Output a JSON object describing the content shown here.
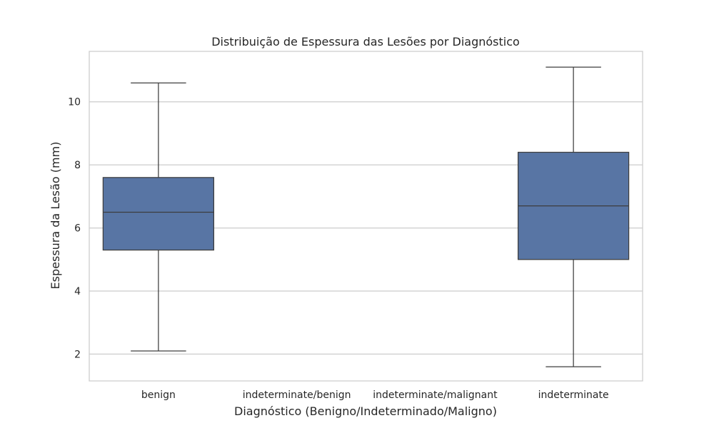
{
  "chart_data": {
    "type": "box",
    "title": "Distribuição de Espessura das Lesões por Diagnóstico",
    "xlabel": "Diagnóstico (Benigno/Indeterminado/Maligno)",
    "ylabel": "Espessura da Lesão (mm)",
    "categories": [
      "benign",
      "indeterminate/benign",
      "indeterminate/malignant",
      "indeterminate"
    ],
    "boxes": [
      {
        "category": "benign",
        "min": 2.1,
        "q1": 5.3,
        "median": 6.5,
        "q3": 7.6,
        "max": 10.6
      },
      null,
      null,
      {
        "category": "indeterminate",
        "min": 1.6,
        "q1": 5.0,
        "median": 6.7,
        "q3": 8.4,
        "max": 11.1
      }
    ],
    "yticks": [
      2,
      4,
      6,
      8,
      10
    ],
    "ylim": [
      1.15,
      11.6
    ],
    "grid": "horizontal",
    "box_color": "#5875a4",
    "line_color": "#3d3d3d",
    "grid_color": "#cccccc"
  }
}
